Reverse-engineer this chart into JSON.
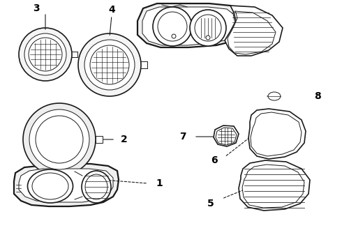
{
  "bg_color": "#ffffff",
  "line_color": "#1a1a1a",
  "label_color": "#000000",
  "fig_w": 4.9,
  "fig_h": 3.6,
  "dpi": 100
}
